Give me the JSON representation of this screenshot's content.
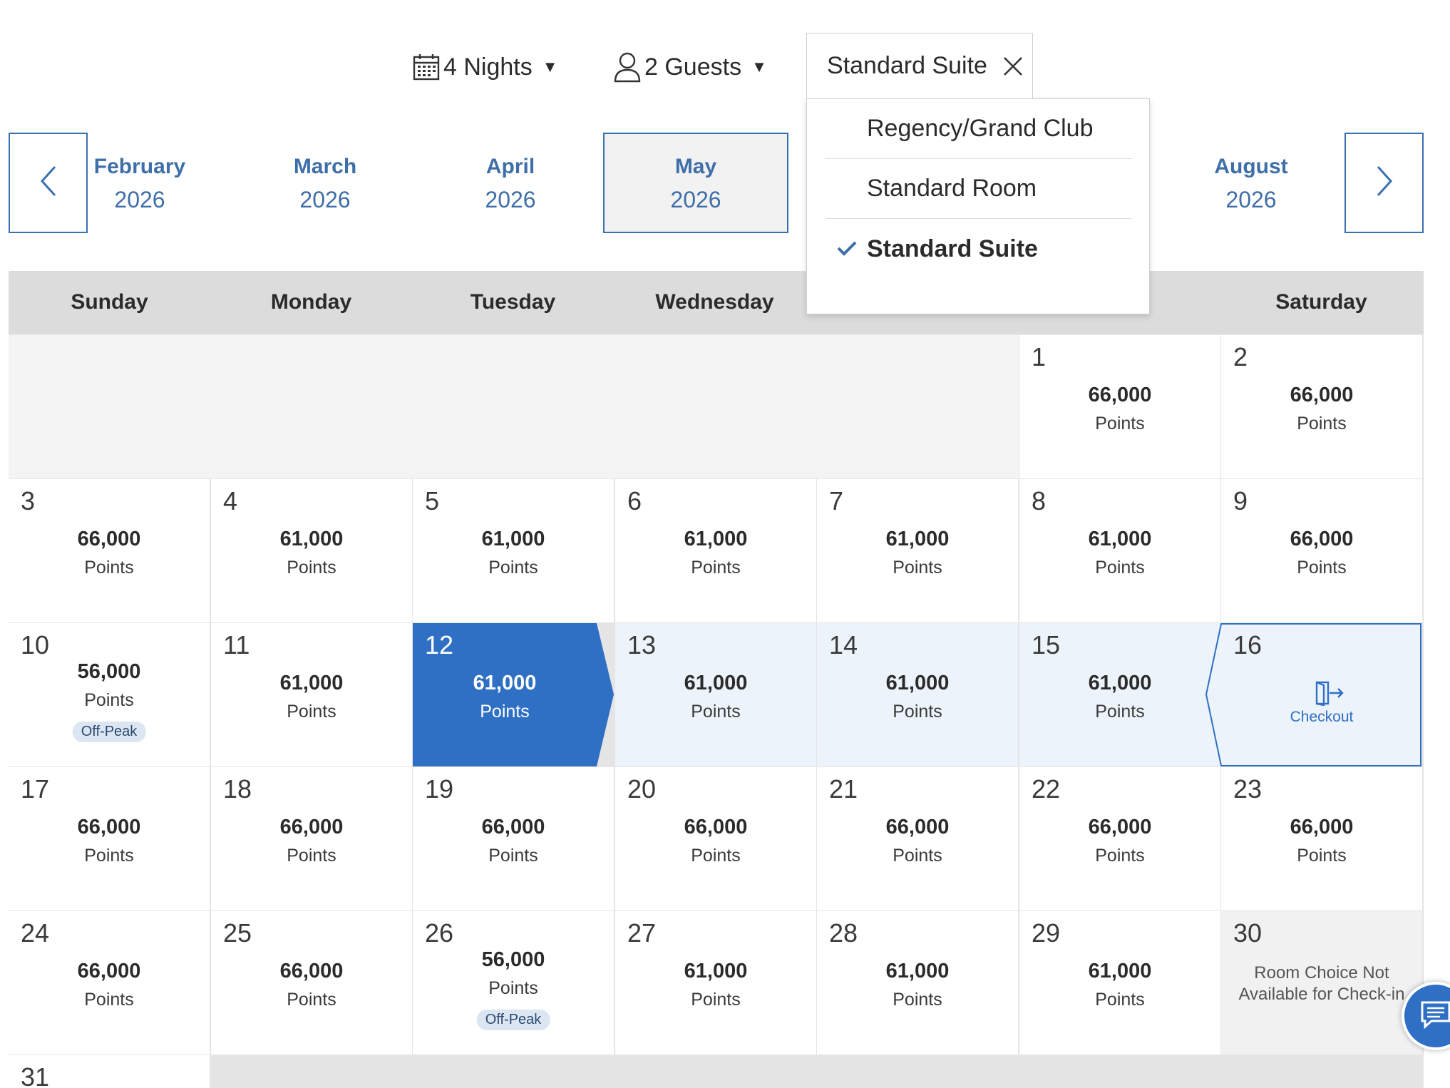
{
  "filters": {
    "nights_label": "4 Nights",
    "guests_label": "2 Guests",
    "room_type_label": "Standard Suite"
  },
  "room_menu": {
    "options": [
      {
        "label": "Regency/Grand Club",
        "selected": false
      },
      {
        "label": "Standard Room",
        "selected": false
      },
      {
        "label": "Standard Suite",
        "selected": true
      }
    ]
  },
  "months": [
    {
      "name": "February",
      "year": "2026"
    },
    {
      "name": "March",
      "year": "2026"
    },
    {
      "name": "April",
      "year": "2026"
    },
    {
      "name": "May",
      "year": "2026",
      "selected": true
    },
    {
      "name": "August",
      "year": "2026"
    }
  ],
  "weekdays": [
    "Sunday",
    "Monday",
    "Tuesday",
    "Wednesday",
    "",
    "",
    "Saturday"
  ],
  "calendar": {
    "points_label": "Points",
    "offpeak_label": "Off-Peak",
    "checkout_label": "Checkout",
    "not_available_text": "Room Choice Not Available for Check-in",
    "checkin_day": "12",
    "checkout_day": "16",
    "days": {
      "1": {
        "points": "66,000"
      },
      "2": {
        "points": "66,000"
      },
      "3": {
        "points": "66,000"
      },
      "4": {
        "points": "61,000"
      },
      "5": {
        "points": "61,000"
      },
      "6": {
        "points": "61,000"
      },
      "7": {
        "points": "61,000"
      },
      "8": {
        "points": "61,000"
      },
      "9": {
        "points": "66,000"
      },
      "10": {
        "points": "56,000",
        "offpeak": true
      },
      "11": {
        "points": "61,000"
      },
      "12": {
        "points": "61,000"
      },
      "13": {
        "points": "61,000"
      },
      "14": {
        "points": "61,000"
      },
      "15": {
        "points": "61,000"
      },
      "16": {
        "checkout": true
      },
      "17": {
        "points": "66,000"
      },
      "18": {
        "points": "66,000"
      },
      "19": {
        "points": "66,000"
      },
      "20": {
        "points": "66,000"
      },
      "21": {
        "points": "66,000"
      },
      "22": {
        "points": "66,000"
      },
      "23": {
        "points": "66,000"
      },
      "24": {
        "points": "66,000"
      },
      "25": {
        "points": "66,000"
      },
      "26": {
        "points": "56,000",
        "offpeak": true
      },
      "27": {
        "points": "61,000"
      },
      "28": {
        "points": "61,000"
      },
      "29": {
        "points": "61,000"
      },
      "30": {
        "not_available": true
      },
      "31": {}
    }
  },
  "colors": {
    "accent": "#2f6fc4",
    "link": "#3f6fa8",
    "range": "#edf3fa",
    "header": "#dcdcdc"
  }
}
